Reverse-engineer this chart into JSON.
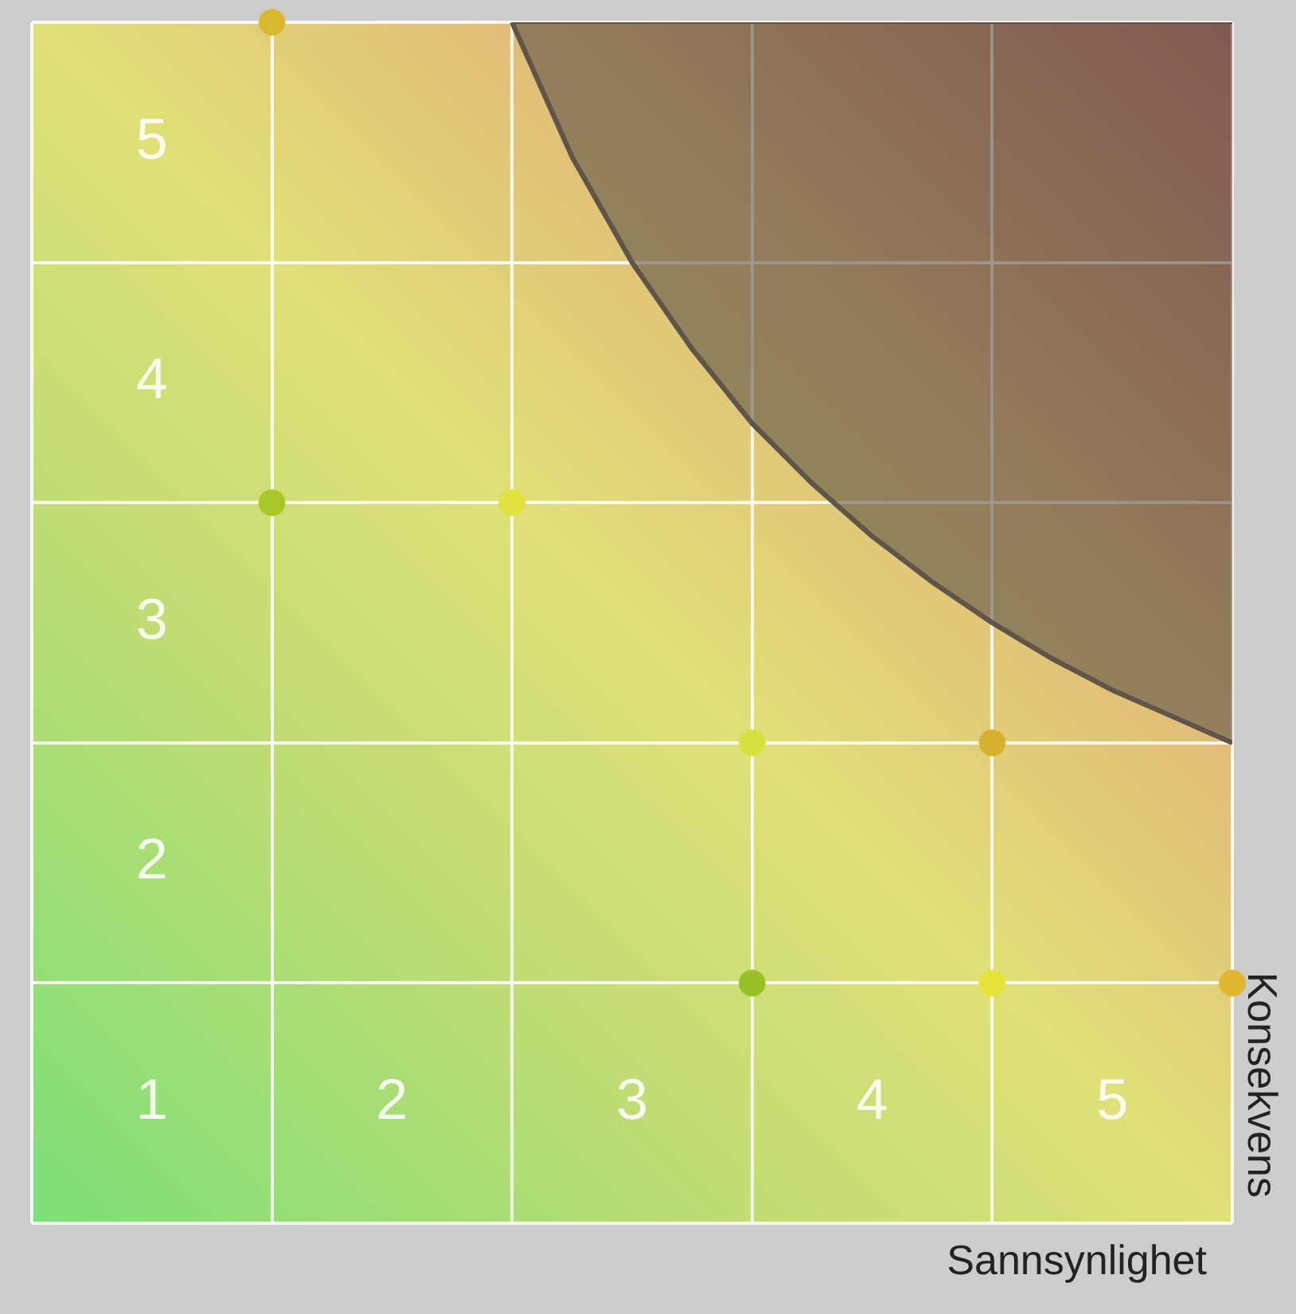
{
  "chart_data": {
    "type": "scatter",
    "xlabel": "Sannsynlighet",
    "ylabel": "Konsekvens",
    "xlim": [
      0,
      5
    ],
    "ylim": [
      0,
      5
    ],
    "xticks": [
      {
        "value": 0,
        "label": null
      },
      {
        "value": 0.5,
        "label": "1"
      },
      {
        "value": 1,
        "label": null
      },
      {
        "value": 1.5,
        "label": "2"
      },
      {
        "value": 2,
        "label": null
      },
      {
        "value": 2.5,
        "label": "3"
      },
      {
        "value": 3,
        "label": null
      },
      {
        "value": 3.5,
        "label": "4"
      },
      {
        "value": 4,
        "label": null
      },
      {
        "value": 4.5,
        "label": "5"
      },
      {
        "value": 5,
        "label": null
      }
    ],
    "yticks": [
      {
        "value": 0,
        "label": null
      },
      {
        "value": 1,
        "label": null
      },
      {
        "value": 1.5,
        "label": "2"
      },
      {
        "value": 2,
        "label": null
      },
      {
        "value": 2.5,
        "label": "3"
      },
      {
        "value": 3,
        "label": null
      },
      {
        "value": 3.5,
        "label": "4"
      },
      {
        "value": 4,
        "label": null
      },
      {
        "value": 4.5,
        "label": "5"
      },
      {
        "value": 5,
        "label": null
      }
    ],
    "grid": true,
    "marker": "circle",
    "series": [
      {
        "type": "line",
        "marker": "none",
        "color": "#5f5548",
        "x": [
          2,
          2.25,
          2.5,
          2.75,
          3,
          3.25,
          3.5,
          3.75,
          4,
          4.25,
          4.5,
          4.75,
          5
        ],
        "values": [
          5,
          4.44,
          4,
          3.64,
          3.33,
          3.08,
          2.86,
          2.67,
          2.5,
          2.35,
          2.22,
          2.11,
          2
        ],
        "lower": [
          5,
          4.44,
          4,
          3.64,
          3.33,
          3.08,
          2.86,
          2.67,
          2.5,
          2.35,
          2.22,
          2.11,
          2
        ],
        "upper": [
          5,
          5,
          5,
          5,
          5,
          5,
          5,
          5,
          5,
          5,
          5,
          5,
          5
        ]
      },
      {
        "type": "scatter",
        "x": [
          1,
          1,
          2,
          3,
          4,
          3,
          4,
          5
        ],
        "values": [
          5,
          3,
          3,
          2,
          2,
          1,
          1,
          1
        ],
        "colors": [
          "#d8b830",
          "#a8c828",
          "#e0e040",
          "#d8e040",
          "#d8b030",
          "#98c028",
          "#e6e238",
          "#e0b830"
        ]
      }
    ]
  }
}
